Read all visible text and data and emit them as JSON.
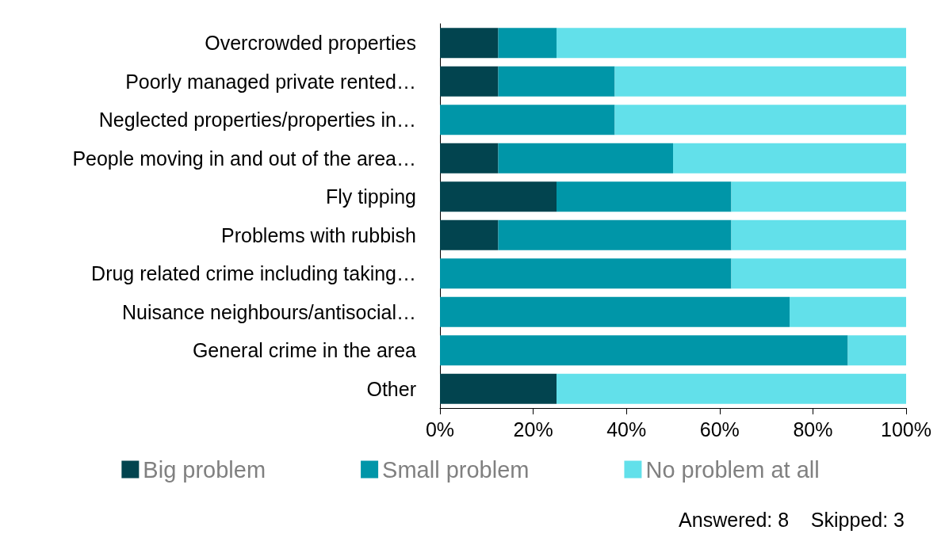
{
  "chart_data": {
    "type": "bar",
    "orientation": "horizontal",
    "stacked": true,
    "categories": [
      "Overcrowded properties",
      "Poorly managed private rented…",
      "Neglected properties/properties in…",
      "People moving in and out of the area…",
      "Fly tipping",
      "Problems with rubbish",
      "Drug related crime including taking…",
      "Nuisance neighbours/antisocial…",
      "General crime in the area",
      "Other"
    ],
    "series": [
      {
        "name": "Big problem",
        "color": "#02444f",
        "values": [
          12.5,
          12.5,
          0,
          12.5,
          25,
          12.5,
          0,
          0,
          0,
          25
        ]
      },
      {
        "name": "Small problem",
        "color": "#0096a8",
        "values": [
          12.5,
          25,
          37.5,
          37.5,
          37.5,
          50,
          62.5,
          75,
          87.5,
          0
        ]
      },
      {
        "name": "No problem at all",
        "color": "#62e0ea",
        "values": [
          75,
          62.5,
          62.5,
          50,
          37.5,
          37.5,
          37.5,
          25,
          12.5,
          75
        ]
      }
    ],
    "xlim": [
      0,
      100
    ],
    "xticks": [
      {
        "value": 0,
        "label": "0%"
      },
      {
        "value": 20,
        "label": "20%"
      },
      {
        "value": 40,
        "label": "40%"
      },
      {
        "value": 60,
        "label": "60%"
      },
      {
        "value": 80,
        "label": "80%"
      },
      {
        "value": 100,
        "label": "100%"
      }
    ],
    "grid": false,
    "legend": "bottom",
    "annotations": [
      "Answered: 8    Skipped: 3"
    ]
  }
}
